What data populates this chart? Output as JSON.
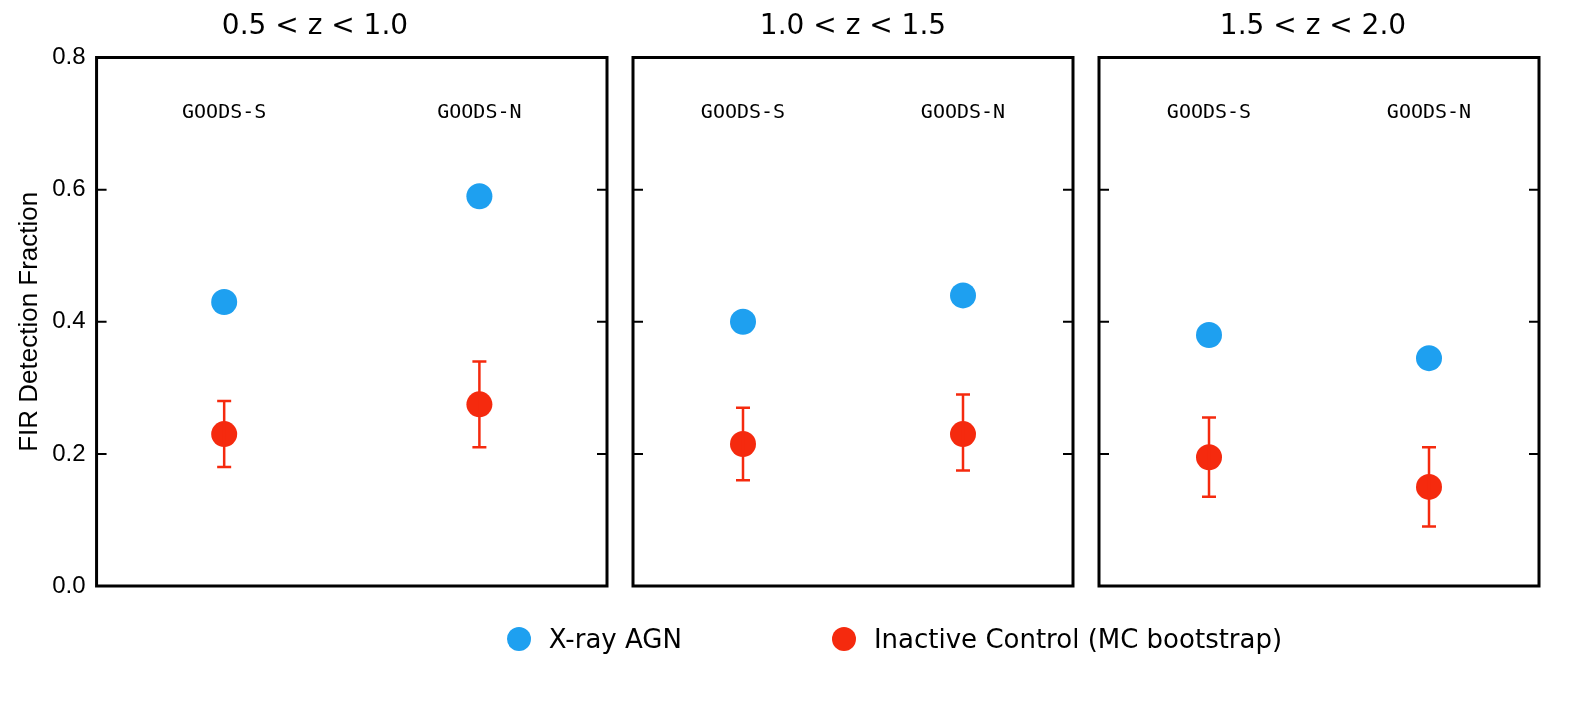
{
  "chart_data": [
    {
      "type": "scatter",
      "title": "0.5 < z < 1.0",
      "ylabel": "FIR Detection Fraction",
      "categories": [
        "GOODS-S",
        "GOODS-N"
      ],
      "ylim": [
        0,
        0.8
      ],
      "yticks": [
        {
          "value": 0,
          "label": "0.0"
        },
        0.2,
        0.4,
        0.6,
        0.8
      ],
      "legend": "bottom",
      "marker": "circle",
      "series": [
        {
          "name": "X-ray AGN",
          "color": "#1ea0f0",
          "values": [
            0.43,
            0.59
          ]
        },
        {
          "name": "Inactive Control (MC bootstrap)",
          "color": "#f52a0e",
          "values": [
            0.23,
            0.275
          ],
          "errors": [
            [
              0.18,
              0.28
            ],
            [
              0.21,
              0.34
            ]
          ]
        }
      ]
    },
    {
      "type": "scatter",
      "title": "1.0 < z < 1.5",
      "categories": [
        "GOODS-S",
        "GOODS-N"
      ],
      "ylim": [
        0,
        0.8
      ],
      "yticks": [
        {
          "value": 0,
          "label": null
        },
        {
          "value": 0.2,
          "label": null
        },
        {
          "value": 0.4,
          "label": null
        },
        {
          "value": 0.6,
          "label": null
        },
        {
          "value": 0.8,
          "label": null
        }
      ],
      "tick_labels": false,
      "marker": "circle",
      "series": [
        {
          "color": "#1ea0f0",
          "values": [
            0.4,
            0.44
          ]
        },
        {
          "color": "#f52a0e",
          "values": [
            0.215,
            0.23
          ],
          "errors": [
            [
              0.16,
              0.27
            ],
            [
              0.175,
              0.29
            ]
          ]
        }
      ]
    },
    {
      "type": "scatter",
      "title": "1.5 < z < 2.0",
      "categories": [
        "GOODS-S",
        "GOODS-N"
      ],
      "ylim": [
        0,
        0.8
      ],
      "yticks": [
        {
          "value": 0,
          "label": null
        },
        {
          "value": 0.2,
          "label": null
        },
        {
          "value": 0.4,
          "label": null
        },
        {
          "value": 0.6,
          "label": null
        },
        {
          "value": 0.8,
          "label": null
        }
      ],
      "tick_labels": false,
      "marker": "circle",
      "series": [
        {
          "color": "#1ea0f0",
          "values": [
            0.38,
            0.345
          ]
        },
        {
          "color": "#f52a0e",
          "values": [
            0.195,
            0.15
          ],
          "errors": [
            [
              0.135,
              0.255
            ],
            [
              0.09,
              0.21
            ]
          ]
        }
      ]
    }
  ]
}
